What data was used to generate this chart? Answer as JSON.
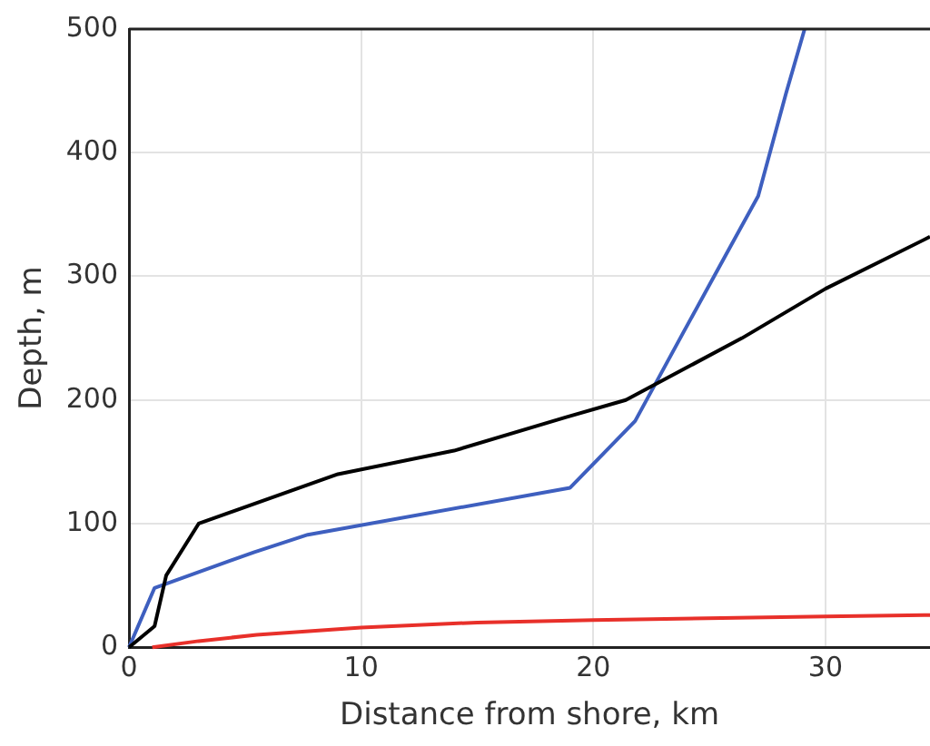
{
  "chart_data": {
    "type": "line",
    "xlabel": "Distance from shore, km",
    "ylabel": "Depth, m",
    "xlim": [
      0,
      34.5
    ],
    "xticks": [
      0,
      10,
      20,
      30
    ],
    "ylim": [
      0,
      500
    ],
    "yticks": [
      0,
      100,
      200,
      300,
      400,
      500
    ],
    "grid": true,
    "legend": false,
    "marker": "none",
    "line_style": "solid",
    "series": [
      {
        "color": "#000000",
        "x": [
          0,
          1.1,
          1.6,
          3,
          9,
          14,
          18.8,
          21.4,
          26.4,
          30,
          34.5
        ],
        "values": [
          0,
          17,
          58,
          100,
          140,
          159,
          186,
          200,
          250,
          290,
          332
        ]
      },
      {
        "color": "#3e5fbf",
        "x": [
          0,
          1.1,
          5.4,
          7.7,
          19,
          21.8,
          23.8,
          25.2,
          27.1,
          28.3,
          29.1
        ],
        "values": [
          0,
          48,
          77,
          91,
          129,
          183,
          252,
          300,
          365,
          448,
          500
        ]
      },
      {
        "color": "#e8302a",
        "x": [
          1,
          3,
          5.5,
          10,
          15,
          20,
          30,
          34.5
        ],
        "values": [
          0,
          5,
          10,
          16,
          20,
          22,
          25,
          26
        ]
      }
    ]
  }
}
